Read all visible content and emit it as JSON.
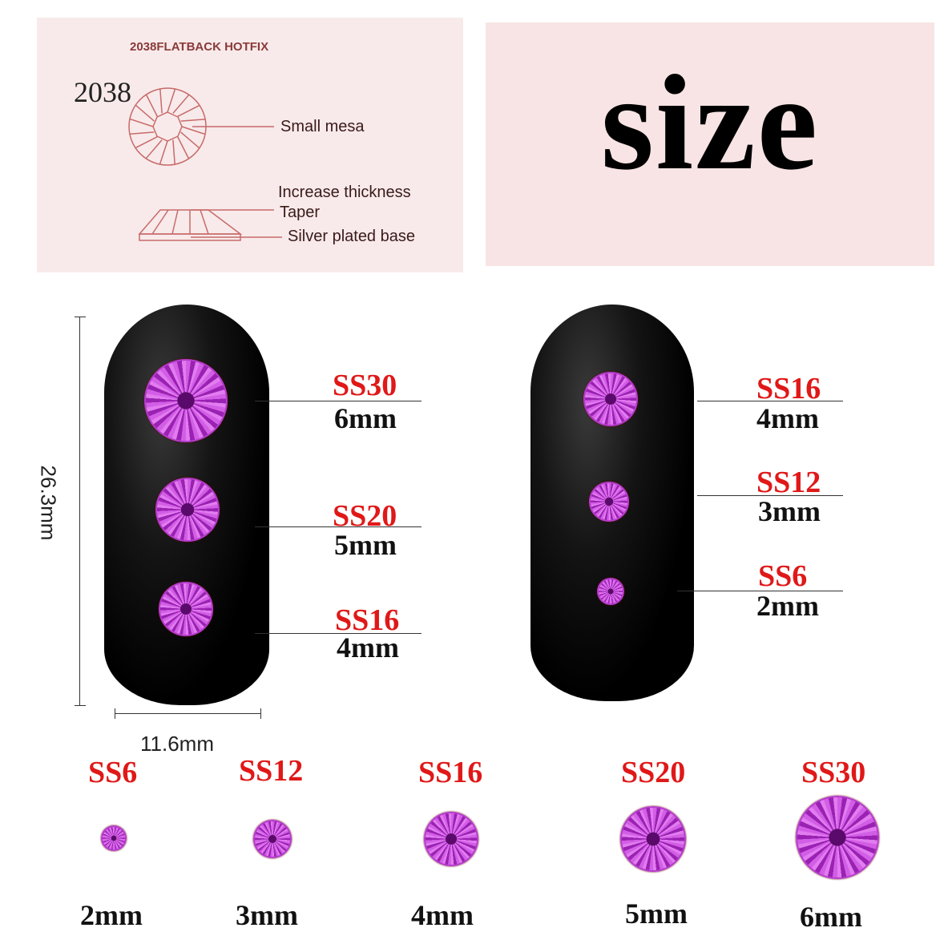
{
  "diagram": {
    "title": "2038FLATBACK HOTFIX",
    "model": "2038",
    "labels": [
      "Small mesa",
      "Increase thickness",
      "Taper",
      "Silver plated base"
    ]
  },
  "heading": "size",
  "dimensions": {
    "height": "26.3mm",
    "width": "11.6mm"
  },
  "nail_left": [
    {
      "code": "SS30",
      "size": "6mm"
    },
    {
      "code": "SS20",
      "size": "5mm"
    },
    {
      "code": "SS16",
      "size": "4mm"
    }
  ],
  "nail_right": [
    {
      "code": "SS16",
      "size": "4mm"
    },
    {
      "code": "SS12",
      "size": "3mm"
    },
    {
      "code": "SS6",
      "size": "2mm"
    }
  ],
  "chart": [
    {
      "code": "SS6",
      "size": "2mm"
    },
    {
      "code": "SS12",
      "size": "3mm"
    },
    {
      "code": "SS16",
      "size": "4mm"
    },
    {
      "code": "SS20",
      "size": "5mm"
    },
    {
      "code": "SS30",
      "size": "6mm"
    }
  ],
  "colors": {
    "panel": "#f8eaea",
    "label_red": "#e01818",
    "gem": "#c040d0"
  }
}
